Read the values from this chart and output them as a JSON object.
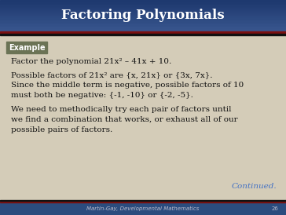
{
  "title": "Factoring Polynomials",
  "title_bg_color": "#2B4C7E",
  "title_color": "#FFFFFF",
  "slide_bg": "#D4CCB8",
  "example_bg": "#6B7355",
  "example_text": "Example",
  "example_text_color": "#FFFFFF",
  "line1": "Factor the polynomial 21x² – 41x + 10.",
  "line2": "Possible factors of 21x² are {x, 21x} or {3x, 7x}.",
  "line3a": "Since the middle term is negative, possible factors of 10",
  "line3b": "must both be negative: {-1, -10} or {-2, -5}.",
  "line4a": "We need to methodically try each pair of factors until",
  "line4b": "we find a combination that works, or exhaust all of our",
  "line4c": "possible pairs of factors.",
  "continued_text": "Continued.",
  "continued_color": "#4472C4",
  "footer_text": "Martin-Gay, Developmental Mathematics",
  "footer_page": "26",
  "body_text_color": "#111111",
  "red_bar": "#7B1010",
  "dark_bar": "#111111",
  "footer_bg": "#2B4C7E"
}
